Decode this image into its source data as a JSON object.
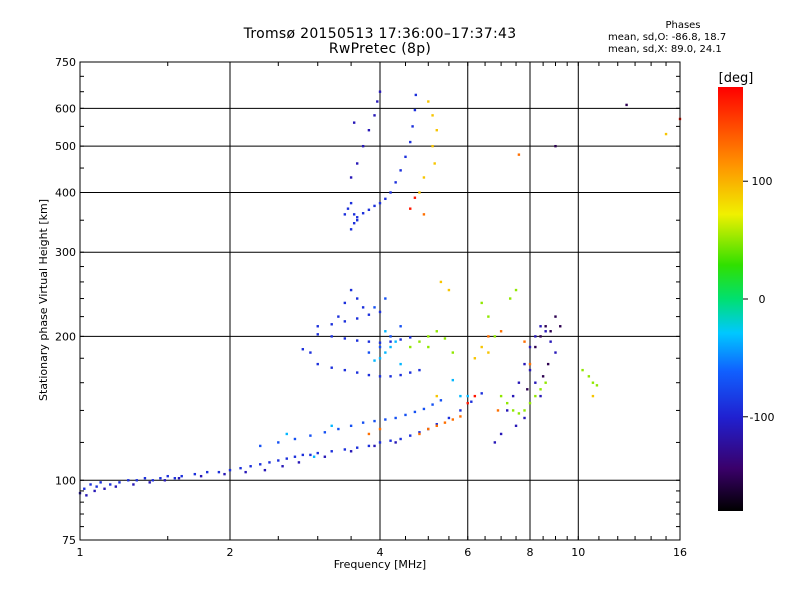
{
  "chart_data": {
    "type": "scatter",
    "title": "Tromsø 20150513 17:36:00–17:37:43",
    "subtitle": "RwPretec (8p)",
    "xlabel": "Frequency [MHz]",
    "ylabel": "Stationary phase Virtual Height [km]",
    "x_scale": "log",
    "y_scale": "log",
    "xlim": [
      1,
      16
    ],
    "ylim": [
      75,
      750
    ],
    "x_ticks": [
      1,
      2,
      4,
      6,
      8,
      10,
      16
    ],
    "x_tick_labels": [
      "1",
      "2",
      "4",
      "6",
      "8",
      "10",
      "16"
    ],
    "y_ticks": [
      75,
      100,
      200,
      300,
      400,
      500,
      600,
      750
    ],
    "y_tick_labels": [
      "75",
      "100",
      "200",
      "300",
      "400",
      "500",
      "600",
      "750"
    ],
    "grid": true,
    "phase_stats": {
      "heading": "Phases",
      "o_line": "mean, sd,O: -86.8, 18.7",
      "x_line": "mean, sd,X: 89.0, 24.1"
    },
    "colorbar": {
      "label": "[deg]",
      "range": [
        -180,
        180
      ],
      "ticks": [
        100,
        0,
        -100
      ],
      "tick_labels": [
        "100",
        "0",
        "-100"
      ]
    },
    "series": [
      {
        "phase": -90,
        "points": [
          [
            1.02,
            96
          ],
          [
            1.05,
            98
          ],
          [
            1.08,
            97
          ],
          [
            1.1,
            99
          ],
          [
            1.15,
            98
          ],
          [
            1.2,
            99
          ],
          [
            1.25,
            100
          ],
          [
            1.3,
            100
          ],
          [
            1.35,
            101
          ],
          [
            1.4,
            100
          ],
          [
            1.45,
            101
          ],
          [
            1.5,
            102
          ],
          [
            1.55,
            101
          ],
          [
            1.6,
            102
          ],
          [
            1.7,
            103
          ],
          [
            1.8,
            104
          ],
          [
            1.9,
            104
          ],
          [
            2.0,
            105
          ],
          [
            2.1,
            106
          ],
          [
            2.2,
            107
          ],
          [
            2.3,
            108
          ],
          [
            2.4,
            109
          ],
          [
            2.5,
            110
          ],
          [
            2.6,
            111
          ],
          [
            2.7,
            112
          ],
          [
            2.8,
            113
          ],
          [
            2.9,
            113
          ],
          [
            3.0,
            114
          ],
          [
            3.2,
            115
          ],
          [
            3.4,
            116
          ],
          [
            3.6,
            117
          ],
          [
            3.8,
            118
          ],
          [
            4.0,
            120
          ],
          [
            4.2,
            121
          ],
          [
            4.4,
            122
          ],
          [
            4.6,
            124
          ],
          [
            4.8,
            126
          ],
          [
            5.0,
            128
          ],
          [
            5.2,
            131
          ],
          [
            5.5,
            135
          ],
          [
            5.8,
            140
          ],
          [
            6.1,
            146
          ],
          [
            6.4,
            152
          ],
          [
            3.5,
            335
          ],
          [
            3.55,
            345
          ],
          [
            3.6,
            355
          ],
          [
            3.7,
            362
          ],
          [
            3.8,
            368
          ],
          [
            3.9,
            375
          ],
          [
            4.0,
            380
          ],
          [
            4.1,
            388
          ],
          [
            4.2,
            400
          ],
          [
            4.3,
            420
          ],
          [
            4.4,
            445
          ],
          [
            4.5,
            475
          ],
          [
            4.6,
            510
          ],
          [
            4.65,
            550
          ],
          [
            4.7,
            595
          ],
          [
            4.72,
            640
          ],
          [
            3.4,
            360
          ],
          [
            3.45,
            370
          ],
          [
            3.5,
            380
          ],
          [
            3.55,
            360
          ],
          [
            3.6,
            350
          ],
          [
            3.0,
            202
          ],
          [
            3.2,
            200
          ],
          [
            3.4,
            198
          ],
          [
            3.6,
            196
          ],
          [
            3.8,
            195
          ],
          [
            4.0,
            194
          ],
          [
            4.2,
            195
          ],
          [
            4.4,
            197
          ],
          [
            4.6,
            199
          ],
          [
            3.0,
            175
          ],
          [
            3.2,
            172
          ],
          [
            3.4,
            170
          ],
          [
            3.6,
            168
          ],
          [
            3.8,
            166
          ],
          [
            4.0,
            165
          ],
          [
            4.2,
            165
          ],
          [
            4.4,
            166
          ],
          [
            4.6,
            168
          ],
          [
            4.8,
            170
          ],
          [
            3.0,
            210
          ],
          [
            3.2,
            212
          ],
          [
            3.4,
            215
          ],
          [
            3.6,
            218
          ],
          [
            3.8,
            222
          ],
          [
            4.0,
            225
          ],
          [
            2.8,
            188
          ],
          [
            2.9,
            185
          ],
          [
            3.4,
            235
          ],
          [
            3.5,
            250
          ],
          [
            3.6,
            240
          ],
          [
            3.7,
            230
          ],
          [
            3.3,
            220
          ]
        ]
      },
      {
        "phase": -110,
        "points": [
          [
            1.0,
            94
          ],
          [
            1.03,
            93
          ],
          [
            1.07,
            95
          ],
          [
            1.12,
            96
          ],
          [
            1.18,
            97
          ],
          [
            1.28,
            98
          ],
          [
            1.38,
            99
          ],
          [
            1.48,
            100
          ],
          [
            1.58,
            101
          ],
          [
            1.75,
            102
          ],
          [
            1.95,
            103
          ],
          [
            2.15,
            104
          ],
          [
            2.35,
            105
          ],
          [
            2.55,
            107
          ],
          [
            2.75,
            109
          ],
          [
            3.1,
            112
          ],
          [
            3.5,
            115
          ],
          [
            3.9,
            118
          ],
          [
            4.3,
            120
          ],
          [
            7.2,
            140
          ],
          [
            7.4,
            150
          ],
          [
            7.6,
            160
          ],
          [
            7.8,
            175
          ],
          [
            8.0,
            190
          ],
          [
            8.2,
            200
          ],
          [
            8.4,
            210
          ],
          [
            8.6,
            205
          ],
          [
            8.8,
            195
          ],
          [
            9.0,
            185
          ],
          [
            8.0,
            170
          ],
          [
            8.2,
            160
          ],
          [
            8.4,
            150
          ],
          [
            7.5,
            130
          ],
          [
            7.8,
            135
          ],
          [
            6.8,
            120
          ],
          [
            7.0,
            125
          ],
          [
            3.5,
            430
          ],
          [
            3.6,
            460
          ],
          [
            3.7,
            500
          ],
          [
            3.8,
            540
          ],
          [
            3.9,
            580
          ],
          [
            3.95,
            620
          ],
          [
            4.0,
            650
          ],
          [
            3.55,
            560
          ]
        ]
      },
      {
        "phase": -150,
        "points": [
          [
            8.2,
            190
          ],
          [
            8.4,
            200
          ],
          [
            8.6,
            210
          ],
          [
            8.8,
            205
          ],
          [
            9.0,
            220
          ],
          [
            9.2,
            210
          ],
          [
            8.5,
            165
          ],
          [
            8.7,
            175
          ],
          [
            7.9,
            155
          ],
          [
            12.5,
            610
          ],
          [
            9.0,
            500
          ]
        ]
      },
      {
        "phase": -70,
        "points": [
          [
            2.3,
            118
          ],
          [
            2.5,
            120
          ],
          [
            2.7,
            122
          ],
          [
            2.9,
            124
          ],
          [
            3.1,
            126
          ],
          [
            3.3,
            128
          ],
          [
            3.5,
            130
          ],
          [
            3.7,
            132
          ],
          [
            3.9,
            133
          ],
          [
            4.1,
            134
          ],
          [
            4.3,
            135
          ],
          [
            4.5,
            137
          ],
          [
            4.7,
            139
          ],
          [
            4.9,
            141
          ],
          [
            5.1,
            144
          ],
          [
            5.3,
            147
          ],
          [
            3.8,
            185
          ],
          [
            4.0,
            190
          ],
          [
            4.2,
            200
          ],
          [
            4.4,
            210
          ],
          [
            3.9,
            230
          ],
          [
            4.1,
            240
          ]
        ]
      },
      {
        "phase": -35,
        "points": [
          [
            4.0,
            180
          ],
          [
            4.1,
            185
          ],
          [
            4.2,
            190
          ],
          [
            4.3,
            195
          ],
          [
            4.1,
            205
          ],
          [
            3.9,
            178
          ],
          [
            4.4,
            175
          ],
          [
            2.6,
            125
          ],
          [
            5.6,
            162
          ],
          [
            5.8,
            150
          ],
          [
            6.0,
            150
          ],
          [
            3.2,
            130
          ],
          [
            2.95,
            112
          ]
        ]
      },
      {
        "phase": 50,
        "points": [
          [
            4.6,
            190
          ],
          [
            4.8,
            195
          ],
          [
            5.0,
            200
          ],
          [
            5.2,
            205
          ],
          [
            5.4,
            198
          ],
          [
            5.6,
            185
          ],
          [
            5.0,
            190
          ],
          [
            7.0,
            150
          ],
          [
            7.2,
            145
          ],
          [
            7.4,
            140
          ],
          [
            7.6,
            138
          ],
          [
            7.8,
            140
          ],
          [
            8.0,
            145
          ],
          [
            8.2,
            150
          ],
          [
            8.4,
            155
          ],
          [
            8.6,
            160
          ],
          [
            10.5,
            165
          ],
          [
            10.7,
            160
          ],
          [
            10.9,
            158
          ],
          [
            10.2,
            170
          ],
          [
            6.4,
            235
          ],
          [
            6.6,
            220
          ],
          [
            6.8,
            200
          ],
          [
            7.5,
            250
          ],
          [
            7.3,
            240
          ]
        ]
      },
      {
        "phase": 90,
        "points": [
          [
            5.0,
            620
          ],
          [
            5.1,
            580
          ],
          [
            5.2,
            540
          ],
          [
            5.1,
            500
          ],
          [
            5.15,
            460
          ],
          [
            4.9,
            430
          ],
          [
            4.8,
            400
          ],
          [
            5.3,
            260
          ],
          [
            5.5,
            250
          ],
          [
            6.2,
            180
          ],
          [
            6.4,
            190
          ],
          [
            6.6,
            185
          ],
          [
            15,
            530
          ],
          [
            10.7,
            150
          ],
          [
            5.2,
            150
          ]
        ]
      },
      {
        "phase": 130,
        "points": [
          [
            4.8,
            125
          ],
          [
            5.0,
            128
          ],
          [
            5.2,
            130
          ],
          [
            5.4,
            132
          ],
          [
            5.6,
            134
          ],
          [
            5.8,
            136
          ],
          [
            3.8,
            125
          ],
          [
            4.0,
            128
          ],
          [
            6.6,
            200
          ],
          [
            7.0,
            205
          ],
          [
            7.8,
            195
          ],
          [
            8.0,
            175
          ],
          [
            7.6,
            480
          ],
          [
            4.9,
            360
          ],
          [
            6.9,
            140
          ]
        ]
      },
      {
        "phase": 170,
        "points": [
          [
            16,
            570
          ],
          [
            4.6,
            370
          ],
          [
            4.7,
            390
          ],
          [
            6.0,
            145
          ],
          [
            6.2,
            150
          ]
        ]
      }
    ]
  }
}
